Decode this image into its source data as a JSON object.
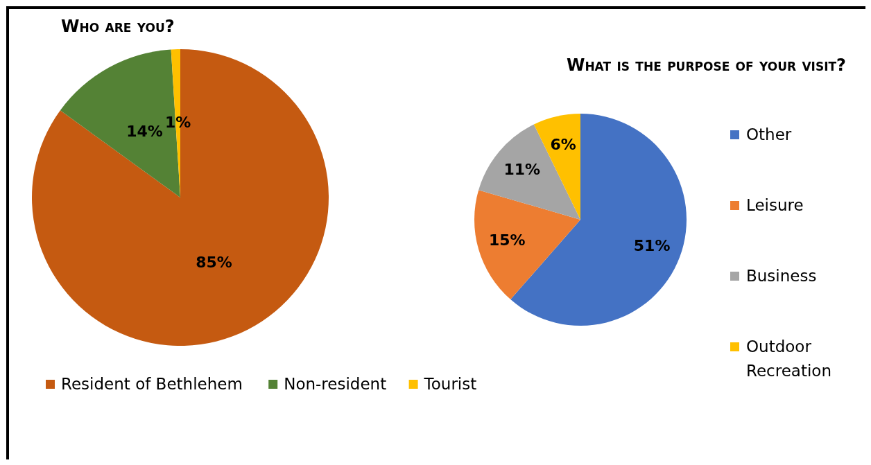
{
  "chart_data": [
    {
      "type": "pie",
      "title": "Who are you?",
      "categories": [
        "Resident of Bethlehem",
        "Non-resident",
        "Tourist"
      ],
      "values": [
        85,
        14,
        1
      ],
      "colors": [
        "#c55a11",
        "#548235",
        "#ffc000"
      ],
      "value_labels": [
        "85%",
        "14%",
        "1%"
      ],
      "legend": "bottom"
    },
    {
      "type": "pie",
      "title": "What is the purpose of your visit?",
      "categories": [
        "Other",
        "Leisure",
        "Business",
        "Outdoor Recreation"
      ],
      "values": [
        51,
        15,
        11,
        6
      ],
      "colors": [
        "#4472c4",
        "#ed7d31",
        "#a5a5a5",
        "#ffc000"
      ],
      "value_labels": [
        "51%",
        "15%",
        "11%",
        "6%"
      ],
      "legend": "right"
    }
  ]
}
